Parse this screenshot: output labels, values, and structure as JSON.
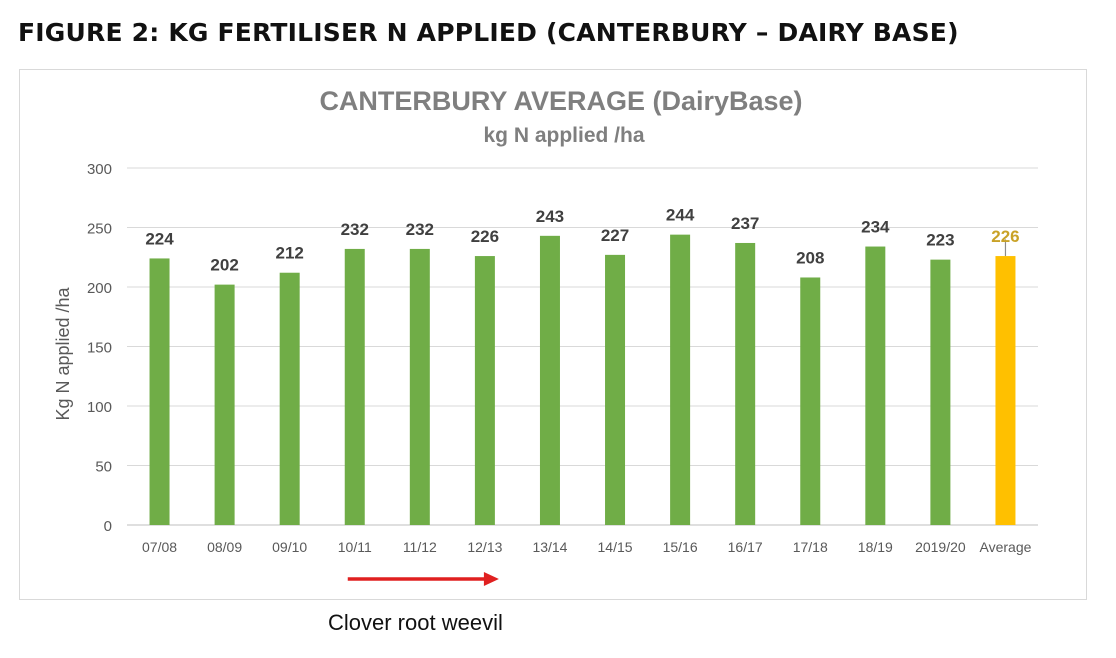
{
  "figure_heading": "FIGURE 2: KG FERTILISER N APPLIED (CANTERBURY – DAIRY BASE)",
  "annotation": "Clover root weevil",
  "chart_data": {
    "type": "bar",
    "title": "CANTERBURY AVERAGE (DairyBase)",
    "subtitle": "kg N applied /ha",
    "ylabel": "Kg N applied /ha",
    "xlabel": "",
    "ylim": [
      0,
      300
    ],
    "yticks": [
      0,
      50,
      100,
      150,
      200,
      250,
      300
    ],
    "grid": true,
    "categories": [
      "07/08",
      "08/09",
      "09/10",
      "10/11",
      "11/12",
      "12/13",
      "13/14",
      "14/15",
      "15/16",
      "16/17",
      "17/18",
      "18/19",
      "2019/20",
      "Average"
    ],
    "values": [
      224,
      202,
      212,
      232,
      232,
      226,
      243,
      227,
      244,
      237,
      208,
      234,
      223,
      226
    ],
    "data_labels": [
      "224",
      "202",
      "212",
      "232",
      "232",
      "226",
      "243",
      "227",
      "244",
      "237",
      "208",
      "234",
      "223",
      "226"
    ],
    "highlight": {
      "category": "Average",
      "error_bar_upper": 240
    },
    "colors": {
      "bar": "#70ad47",
      "highlight_bar": "#ffc000",
      "highlight_label": "#c9a227",
      "label": "#404040",
      "axis_text": "#595959",
      "title": "#7f7f7f",
      "arrow": "#e02020"
    },
    "arrow": {
      "from_category": "10/11",
      "to_category": "12/13"
    }
  }
}
